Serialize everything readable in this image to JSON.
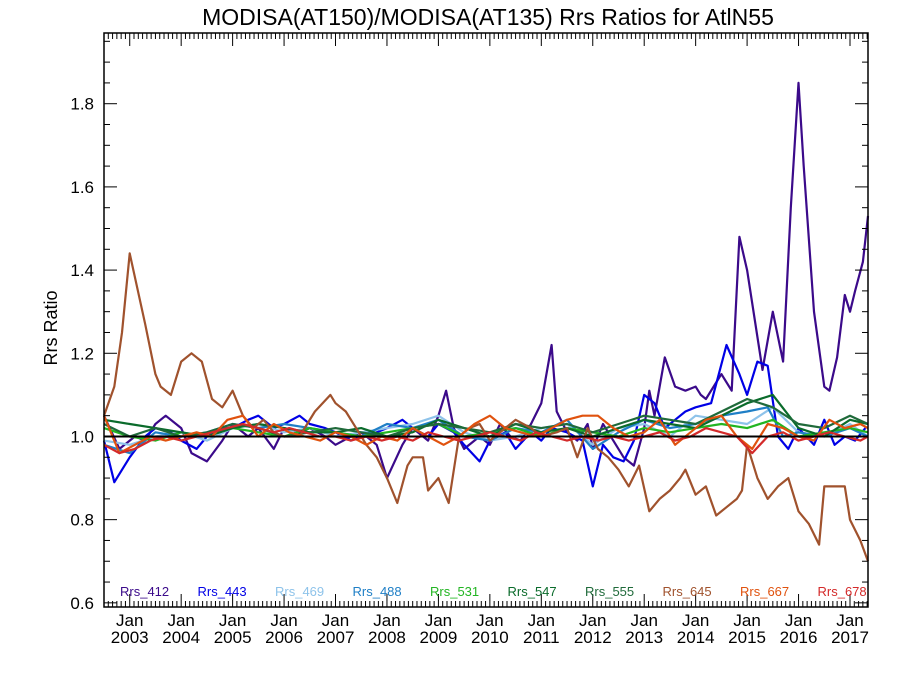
{
  "chart_data": {
    "type": "line",
    "title": "MODISA(AT150)/MODISA(AT135)  Rrs Ratios for AtlN55",
    "xlabel": "",
    "ylabel": "Rrs Ratio",
    "xlim": [
      2002.5,
      2017.35
    ],
    "ylim": [
      0.59,
      1.97
    ],
    "yticks": [
      0.6,
      0.8,
      1.0,
      1.2,
      1.4,
      1.6,
      1.8
    ],
    "ytick_labels": [
      "0.6",
      "0.8",
      "1.0",
      "1.2",
      "1.4",
      "1.6",
      "1.8"
    ],
    "xticks": [
      2003,
      2004,
      2005,
      2006,
      2007,
      2008,
      2009,
      2010,
      2011,
      2012,
      2013,
      2014,
      2015,
      2016,
      2017
    ],
    "xtick_month": "Jan",
    "xtick_years": [
      "2003",
      "2004",
      "2005",
      "2006",
      "2007",
      "2008",
      "2009",
      "2010",
      "2011",
      "2012",
      "2013",
      "2014",
      "2015",
      "2016",
      "2017"
    ],
    "grid": false,
    "legend_position": "bottom",
    "reference_line": {
      "y": 1.0,
      "color": "#000000"
    },
    "series": [
      {
        "name": "Rrs_412",
        "color": "#3b0a8a",
        "x": [
          2002.5,
          2002.8,
          2003.1,
          2003.3,
          2003.5,
          2003.7,
          2004.0,
          2004.2,
          2004.5,
          2004.8,
          2005.0,
          2005.3,
          2005.5,
          2005.8,
          2006.0,
          2006.3,
          2006.5,
          2006.8,
          2007.0,
          2007.3,
          2007.5,
          2007.8,
          2008.0,
          2008.3,
          2008.5,
          2008.8,
          2009.0,
          2009.15,
          2009.3,
          2009.5,
          2009.8,
          2010.0,
          2010.2,
          2010.4,
          2010.6,
          2010.8,
          2011.0,
          2011.2,
          2011.3,
          2011.5,
          2011.7,
          2011.9,
          2012.0,
          2012.2,
          2012.4,
          2012.6,
          2012.8,
          2013.0,
          2013.1,
          2013.2,
          2013.4,
          2013.6,
          2013.8,
          2014.0,
          2014.1,
          2014.2,
          2014.5,
          2014.7,
          2014.85,
          2015.0,
          2015.3,
          2015.5,
          2015.7,
          2015.85,
          2016.0,
          2016.1,
          2016.3,
          2016.5,
          2016.6,
          2016.75,
          2016.9,
          2017.0,
          2017.1,
          2017.25,
          2017.35
        ],
        "y": [
          1.05,
          0.97,
          1.0,
          0.99,
          1.03,
          1.05,
          1.02,
          0.96,
          0.94,
          0.99,
          1.03,
          1.0,
          1.02,
          0.97,
          1.02,
          1.01,
          1.02,
          1.0,
          0.98,
          1.0,
          1.01,
          0.98,
          0.9,
          0.98,
          1.02,
          0.99,
          1.05,
          1.11,
          1.02,
          0.97,
          1.0,
          0.98,
          1.03,
          1.0,
          0.99,
          1.03,
          1.08,
          1.22,
          1.06,
          1.01,
          0.99,
          1.03,
          0.97,
          1.03,
          0.99,
          0.95,
          0.93,
          1.02,
          1.11,
          1.05,
          1.19,
          1.12,
          1.11,
          1.12,
          1.1,
          1.09,
          1.15,
          1.11,
          1.48,
          1.4,
          1.16,
          1.3,
          1.18,
          1.55,
          1.85,
          1.65,
          1.3,
          1.12,
          1.11,
          1.19,
          1.34,
          1.3,
          1.35,
          1.42,
          1.53
        ]
      },
      {
        "name": "Rrs_443",
        "color": "#0000e6",
        "x": [
          2002.5,
          2002.7,
          2003.0,
          2003.3,
          2003.5,
          2003.8,
          2004.0,
          2004.3,
          2004.5,
          2004.8,
          2005.0,
          2005.3,
          2005.5,
          2005.8,
          2006.0,
          2006.3,
          2006.5,
          2006.8,
          2007.0,
          2007.3,
          2007.5,
          2007.8,
          2008.0,
          2008.3,
          2008.5,
          2008.8,
          2009.0,
          2009.3,
          2009.5,
          2009.8,
          2010.0,
          2010.3,
          2010.5,
          2010.8,
          2011.0,
          2011.2,
          2011.5,
          2011.8,
          2012.0,
          2012.2,
          2012.4,
          2012.6,
          2012.8,
          2013.0,
          2013.2,
          2013.4,
          2013.6,
          2013.8,
          2014.0,
          2014.3,
          2014.6,
          2014.85,
          2015.0,
          2015.2,
          2015.4,
          2015.6,
          2015.8,
          2016.0,
          2016.3,
          2016.5,
          2016.7,
          2016.9,
          2017.1,
          2017.3
        ],
        "y": [
          0.99,
          0.89,
          0.95,
          1.0,
          1.02,
          1.01,
          0.99,
          0.97,
          1.0,
          1.02,
          1.02,
          1.04,
          1.05,
          1.02,
          1.03,
          1.05,
          1.03,
          1.02,
          1.01,
          0.99,
          1.0,
          1.01,
          1.02,
          1.04,
          1.02,
          1.0,
          1.03,
          1.01,
          0.98,
          0.94,
          0.99,
          1.01,
          0.97,
          1.01,
          0.99,
          1.02,
          1.01,
          0.99,
          0.88,
          0.98,
          0.95,
          0.94,
          0.99,
          1.1,
          1.08,
          1.02,
          1.04,
          1.06,
          1.07,
          1.08,
          1.22,
          1.15,
          1.1,
          1.18,
          1.17,
          1.0,
          0.97,
          1.02,
          0.98,
          1.04,
          0.98,
          1.0,
          0.99,
          1.02
        ]
      },
      {
        "name": "Rrs_469",
        "color": "#8ec3ea",
        "x": [
          2002.5,
          2003.0,
          2003.5,
          2004.0,
          2004.5,
          2005.0,
          2005.5,
          2006.0,
          2006.5,
          2007.0,
          2007.5,
          2008.0,
          2008.5,
          2009.0,
          2009.5,
          2010.0,
          2010.5,
          2011.0,
          2011.5,
          2012.0,
          2012.5,
          2013.0,
          2013.5,
          2014.0,
          2014.5,
          2015.0,
          2015.5,
          2016.0,
          2016.5,
          2017.0,
          2017.35
        ],
        "y": [
          0.99,
          0.98,
          1.0,
          1.01,
          0.99,
          1.02,
          1.03,
          1.01,
          1.02,
          1.0,
          1.01,
          1.02,
          1.03,
          1.05,
          1.01,
          0.99,
          1.0,
          1.02,
          1.03,
          0.98,
          1.02,
          1.03,
          1.0,
          1.05,
          1.04,
          1.03,
          1.07,
          1.01,
          1.0,
          1.03,
          1.0
        ]
      },
      {
        "name": "Rrs_488",
        "color": "#1f7fc6",
        "x": [
          2002.5,
          2003.0,
          2003.5,
          2004.0,
          2004.5,
          2005.0,
          2005.5,
          2006.0,
          2006.5,
          2007.0,
          2007.5,
          2008.0,
          2008.5,
          2009.0,
          2009.5,
          2010.0,
          2010.5,
          2011.0,
          2011.5,
          2012.0,
          2012.5,
          2013.0,
          2013.5,
          2014.0,
          2014.5,
          2015.0,
          2015.4,
          2015.7,
          2016.0,
          2016.5,
          2017.0,
          2017.35
        ],
        "y": [
          0.98,
          0.96,
          1.01,
          1.0,
          1.01,
          1.03,
          1.02,
          1.03,
          1.02,
          1.01,
          1.0,
          1.03,
          1.02,
          1.04,
          1.0,
          0.99,
          1.02,
          1.01,
          1.04,
          0.97,
          1.01,
          1.04,
          1.02,
          1.03,
          1.05,
          1.06,
          1.07,
          1.0,
          1.01,
          1.0,
          1.02,
          1.0
        ]
      },
      {
        "name": "Rrs_531",
        "color": "#22b522",
        "x": [
          2002.5,
          2003.0,
          2003.5,
          2004.0,
          2004.5,
          2005.0,
          2005.5,
          2006.0,
          2006.5,
          2007.0,
          2007.5,
          2008.0,
          2008.5,
          2009.0,
          2009.5,
          2010.0,
          2010.5,
          2011.0,
          2011.5,
          2012.0,
          2012.5,
          2013.0,
          2013.5,
          2014.0,
          2014.5,
          2015.0,
          2015.5,
          2016.0,
          2016.5,
          2017.0,
          2017.35
        ],
        "y": [
          1.02,
          1.0,
          0.99,
          1.01,
          1.0,
          1.02,
          1.01,
          1.0,
          1.02,
          1.01,
          1.0,
          1.01,
          1.02,
          1.03,
          1.0,
          1.01,
          1.02,
          1.0,
          1.02,
          1.01,
          1.0,
          1.02,
          1.01,
          1.02,
          1.03,
          1.02,
          1.04,
          1.0,
          1.01,
          1.02,
          1.01
        ]
      },
      {
        "name": "Rrs_547",
        "color": "#0a6b2b",
        "x": [
          2002.5,
          2003.0,
          2003.5,
          2004.0,
          2004.5,
          2005.0,
          2005.5,
          2006.0,
          2006.5,
          2007.0,
          2007.5,
          2008.0,
          2008.5,
          2009.0,
          2009.5,
          2010.0,
          2010.5,
          2011.0,
          2011.5,
          2012.0,
          2012.5,
          2013.0,
          2013.5,
          2014.0,
          2014.5,
          2015.0,
          2015.5,
          2016.0,
          2016.5,
          2017.0,
          2017.35
        ],
        "y": [
          1.04,
          1.03,
          1.02,
          1.01,
          1.0,
          1.02,
          1.03,
          1.02,
          1.01,
          1.01,
          1.02,
          1.0,
          1.01,
          1.04,
          1.02,
          1.0,
          1.03,
          1.01,
          1.02,
          1.0,
          1.02,
          1.04,
          1.03,
          1.02,
          1.05,
          1.08,
          1.1,
          1.02,
          1.0,
          1.04,
          1.03
        ]
      },
      {
        "name": "Rrs_555",
        "color": "#1f6a3a",
        "x": [
          2002.5,
          2003.0,
          2003.5,
          2004.0,
          2004.5,
          2005.0,
          2005.5,
          2006.0,
          2006.5,
          2007.0,
          2007.5,
          2008.0,
          2008.5,
          2009.0,
          2009.5,
          2010.0,
          2010.5,
          2011.0,
          2011.5,
          2012.0,
          2012.5,
          2013.0,
          2013.5,
          2014.0,
          2014.5,
          2015.0,
          2015.5,
          2016.0,
          2016.5,
          2017.0,
          2017.35
        ],
        "y": [
          1.03,
          1.0,
          1.02,
          1.0,
          1.01,
          1.03,
          1.02,
          1.0,
          1.01,
          1.02,
          1.01,
          1.0,
          1.02,
          1.03,
          1.02,
          1.01,
          1.03,
          1.02,
          1.03,
          1.01,
          1.03,
          1.05,
          1.04,
          1.03,
          1.06,
          1.09,
          1.07,
          1.03,
          1.02,
          1.05,
          1.03
        ]
      },
      {
        "name": "Rrs_645",
        "color": "#a0522d",
        "x": [
          2002.5,
          2002.7,
          2002.85,
          2003.0,
          2003.3,
          2003.5,
          2003.6,
          2003.8,
          2004.0,
          2004.2,
          2004.4,
          2004.6,
          2004.8,
          2005.0,
          2005.2,
          2005.4,
          2005.6,
          2005.8,
          2006.0,
          2006.3,
          2006.6,
          2006.9,
          2007.0,
          2007.2,
          2007.4,
          2007.6,
          2007.8,
          2008.0,
          2008.2,
          2008.4,
          2008.5,
          2008.7,
          2008.8,
          2009.0,
          2009.2,
          2009.4,
          2009.6,
          2009.8,
          2010.0,
          2010.3,
          2010.5,
          2010.8,
          2011.0,
          2011.3,
          2011.5,
          2011.7,
          2011.9,
          2012.1,
          2012.3,
          2012.5,
          2012.7,
          2012.9,
          2013.1,
          2013.3,
          2013.5,
          2013.7,
          2013.8,
          2014.0,
          2014.2,
          2014.4,
          2014.6,
          2014.8,
          2014.9,
          2015.0,
          2015.2,
          2015.4,
          2015.6,
          2015.8,
          2016.0,
          2016.2,
          2016.4,
          2016.5,
          2016.7,
          2016.9,
          2017.0,
          2017.2,
          2017.35
        ],
        "y": [
          1.05,
          1.12,
          1.25,
          1.44,
          1.27,
          1.15,
          1.12,
          1.1,
          1.18,
          1.2,
          1.18,
          1.09,
          1.07,
          1.11,
          1.05,
          1.02,
          1.04,
          1.01,
          1.0,
          1.0,
          1.06,
          1.1,
          1.08,
          1.06,
          1.02,
          0.98,
          0.95,
          0.9,
          0.84,
          0.93,
          0.95,
          0.95,
          0.87,
          0.9,
          0.84,
          1.0,
          1.02,
          1.03,
          0.99,
          1.02,
          1.04,
          1.02,
          1.0,
          1.01,
          1.02,
          0.95,
          1.02,
          0.97,
          0.95,
          0.92,
          0.88,
          0.93,
          0.82,
          0.85,
          0.87,
          0.9,
          0.92,
          0.86,
          0.88,
          0.81,
          0.83,
          0.85,
          0.87,
          0.98,
          0.9,
          0.85,
          0.88,
          0.9,
          0.82,
          0.79,
          0.74,
          0.88,
          0.88,
          0.88,
          0.8,
          0.75,
          0.7
        ]
      },
      {
        "name": "Rrs_667",
        "color": "#e0520e",
        "x": [
          2002.5,
          2002.8,
          2003.1,
          2003.4,
          2003.7,
          2004.0,
          2004.3,
          2004.6,
          2004.9,
          2005.2,
          2005.5,
          2005.8,
          2006.1,
          2006.4,
          2006.7,
          2007.0,
          2007.3,
          2007.6,
          2007.9,
          2008.2,
          2008.5,
          2008.8,
          2009.1,
          2009.4,
          2009.7,
          2010.0,
          2010.3,
          2010.6,
          2010.9,
          2011.2,
          2011.5,
          2011.8,
          2012.1,
          2012.4,
          2012.7,
          2013.0,
          2013.3,
          2013.6,
          2013.9,
          2014.2,
          2014.5,
          2014.8,
          2015.1,
          2015.4,
          2015.7,
          2016.0,
          2016.3,
          2016.6,
          2016.9,
          2017.2,
          2017.35
        ],
        "y": [
          1.05,
          0.96,
          0.98,
          1.0,
          0.99,
          1.0,
          1.01,
          1.0,
          1.04,
          1.05,
          1.0,
          1.03,
          1.01,
          1.0,
          0.99,
          1.01,
          1.0,
          0.98,
          1.0,
          0.99,
          1.02,
          1.0,
          0.98,
          1.0,
          1.03,
          1.05,
          1.02,
          1.01,
          1.0,
          1.02,
          1.04,
          1.05,
          1.05,
          1.02,
          1.0,
          1.01,
          1.04,
          0.98,
          1.01,
          1.04,
          1.05,
          1.0,
          0.97,
          1.03,
          1.02,
          1.0,
          0.99,
          1.04,
          1.02,
          1.03,
          1.02
        ]
      },
      {
        "name": "Rrs_678",
        "color": "#d42a2a",
        "x": [
          2002.5,
          2002.8,
          2003.1,
          2003.4,
          2003.7,
          2004.0,
          2004.3,
          2004.6,
          2004.9,
          2005.2,
          2005.5,
          2005.8,
          2006.1,
          2006.4,
          2006.7,
          2007.0,
          2007.3,
          2007.6,
          2007.9,
          2008.2,
          2008.5,
          2008.8,
          2009.1,
          2009.4,
          2009.7,
          2010.0,
          2010.3,
          2010.6,
          2010.9,
          2011.2,
          2011.5,
          2011.8,
          2012.1,
          2012.4,
          2012.7,
          2013.0,
          2013.3,
          2013.6,
          2013.9,
          2014.2,
          2014.5,
          2014.8,
          2015.1,
          2015.4,
          2015.7,
          2016.0,
          2016.3,
          2016.6,
          2016.9,
          2017.2,
          2017.35
        ],
        "y": [
          0.98,
          0.96,
          0.97,
          0.99,
          1.0,
          0.99,
          1.0,
          1.01,
          1.02,
          1.03,
          1.02,
          1.01,
          1.02,
          1.01,
          1.0,
          1.0,
          0.99,
          1.0,
          0.99,
          1.0,
          0.99,
          1.01,
          1.0,
          0.99,
          1.0,
          1.01,
          1.0,
          0.99,
          1.01,
          1.0,
          0.99,
          1.0,
          0.99,
          1.0,
          0.99,
          1.0,
          1.01,
          0.99,
          1.0,
          1.02,
          1.01,
          1.0,
          0.96,
          1.0,
          1.01,
          0.99,
          1.0,
          1.01,
          1.0,
          0.99,
          1.0
        ]
      }
    ]
  }
}
